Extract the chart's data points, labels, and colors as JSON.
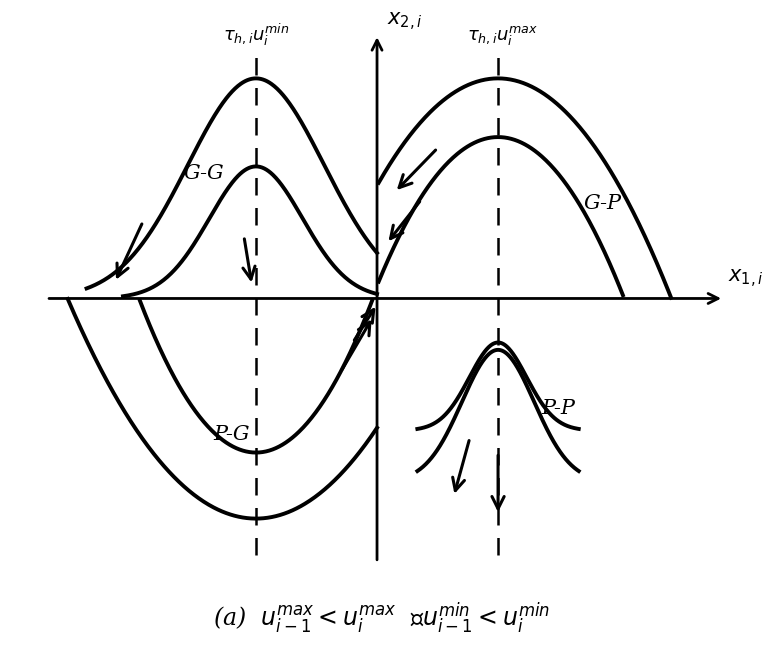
{
  "bg_color": "#ffffff",
  "curve_color": "#000000",
  "curve_lw": 2.8,
  "dashed_lw": 1.8,
  "axis_lw": 2.0,
  "label_fontsize": 15,
  "annotation_fontsize": 15,
  "caption_fontsize": 17,
  "x_left_dashed": -1.5,
  "x_right_dashed": 1.5,
  "xlim": [
    -4.2,
    4.5
  ],
  "ylim": [
    -3.8,
    3.8
  ]
}
